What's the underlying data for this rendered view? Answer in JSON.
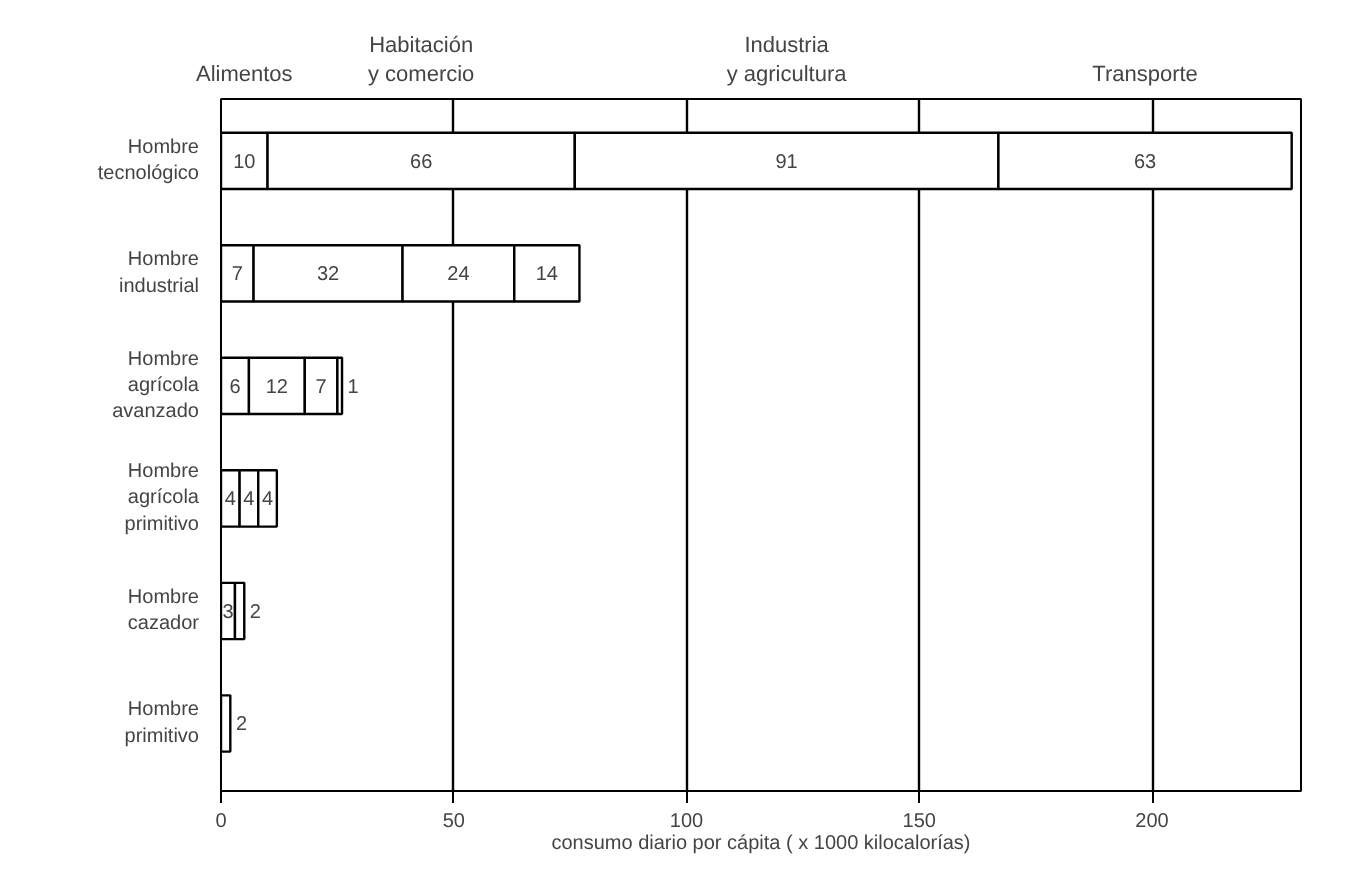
{
  "chart_data": {
    "type": "bar",
    "orientation": "horizontal",
    "stacked": true,
    "categories": [
      "Hombre\ntecnológico",
      "Hombre\nindustrial",
      "Hombre\nagrícola\navanzado",
      "Hombre\nagrícola\nprimitivo",
      "Hombre\ncazador",
      "Hombre\nprimitivo"
    ],
    "series": [
      {
        "name": "Alimentos",
        "color": "#ffffff",
        "values": [
          10,
          7,
          6,
          4,
          3,
          2
        ]
      },
      {
        "name": "Habitación\ny comercio",
        "color": "#ffffff",
        "values": [
          66,
          32,
          12,
          4,
          2,
          null
        ]
      },
      {
        "name": "Industria\ny agricultura",
        "color": "#ffffff",
        "values": [
          91,
          24,
          7,
          4,
          null,
          null
        ]
      },
      {
        "name": "Transporte",
        "color": "#ffffff",
        "values": [
          63,
          14,
          1,
          null,
          null,
          null
        ]
      }
    ],
    "data_labels": true,
    "xlabel": "consumo diario por cápita ( x 1000 kilocalorías)",
    "xlim": [
      0,
      232
    ],
    "xticks": [
      0,
      50,
      100,
      150,
      200
    ],
    "grid": "x"
  }
}
